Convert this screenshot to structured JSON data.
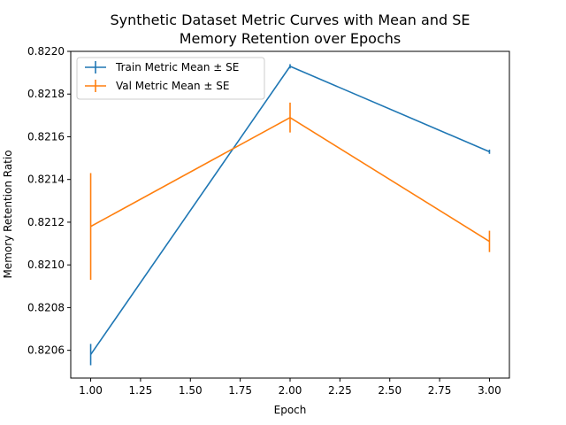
{
  "chart_data": {
    "type": "line",
    "title": "Synthetic Dataset Metric Curves with Mean and SE",
    "subtitle": "Memory Retention over Epochs",
    "xlabel": "Epoch",
    "ylabel": "Memory Retention Ratio",
    "xlim": [
      0.9,
      3.1
    ],
    "ylim": [
      0.82047,
      0.822
    ],
    "x_ticks": [
      1.0,
      1.25,
      1.5,
      1.75,
      2.0,
      2.25,
      2.5,
      2.75,
      3.0
    ],
    "x_tick_labels": [
      "1.00",
      "1.25",
      "1.50",
      "1.75",
      "2.00",
      "2.25",
      "2.50",
      "2.75",
      "3.00"
    ],
    "y_ticks": [
      0.8206,
      0.8208,
      0.821,
      0.8212,
      0.8214,
      0.8216,
      0.8218,
      0.822
    ],
    "y_tick_labels": [
      "0.8206",
      "0.8208",
      "0.8210",
      "0.8212",
      "0.8214",
      "0.8216",
      "0.8218",
      "0.8220"
    ],
    "grid": false,
    "legend_position": "top-left",
    "x": [
      1,
      2,
      3
    ],
    "series": [
      {
        "name": "Train Metric Mean ± SE",
        "color": "#1f77b4",
        "values": [
          0.82058,
          0.82193,
          0.82153
        ],
        "se": [
          5e-05,
          1e-05,
          1e-05
        ]
      },
      {
        "name": "Val Metric Mean ± SE",
        "color": "#ff7f0e",
        "values": [
          0.82118,
          0.82169,
          0.82111
        ],
        "se": [
          0.00025,
          7e-05,
          5e-05
        ]
      }
    ]
  }
}
